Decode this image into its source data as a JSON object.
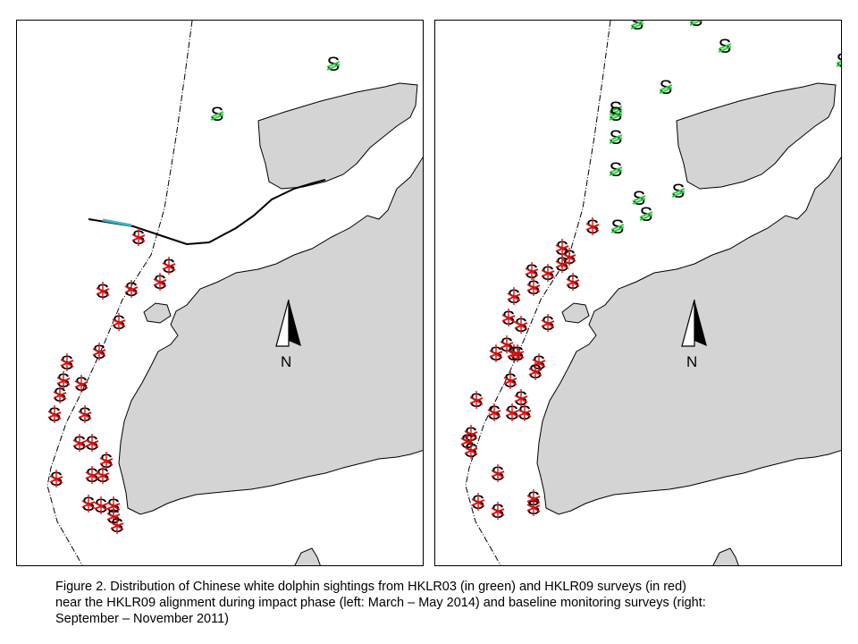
{
  "figure": {
    "caption_lines": [
      "Figure 2.  Distribution of Chinese white dolphin sightings from HKLR03 (in green) and HKLR09 surveys (in red)",
      "near the HKLR09 alignment during impact phase (left: March – May 2014) and baseline monitoring surveys (right:",
      "September – November 2011)"
    ]
  },
  "map_style": {
    "land_color": "#d4d4d4",
    "water_color": "#ffffff",
    "outline_color": "#000000",
    "hklr03_color": "#2ecc40",
    "hklr09_color": "#e01010",
    "alignment_color": "#000000",
    "alignment_accent": "#35b6c9"
  },
  "legend_symbols": {
    "sighting_glyph": "S",
    "hklr03_mark": "green-slash",
    "hklr09_mark": "red-hash"
  },
  "panels": [
    {
      "id": "left",
      "period": "impact phase",
      "north_label": "N",
      "icons": [
        "north-arrow-icon"
      ]
    },
    {
      "id": "right",
      "period": "baseline monitoring",
      "north_label": "N",
      "icons": [
        "north-arrow-icon"
      ]
    }
  ]
}
